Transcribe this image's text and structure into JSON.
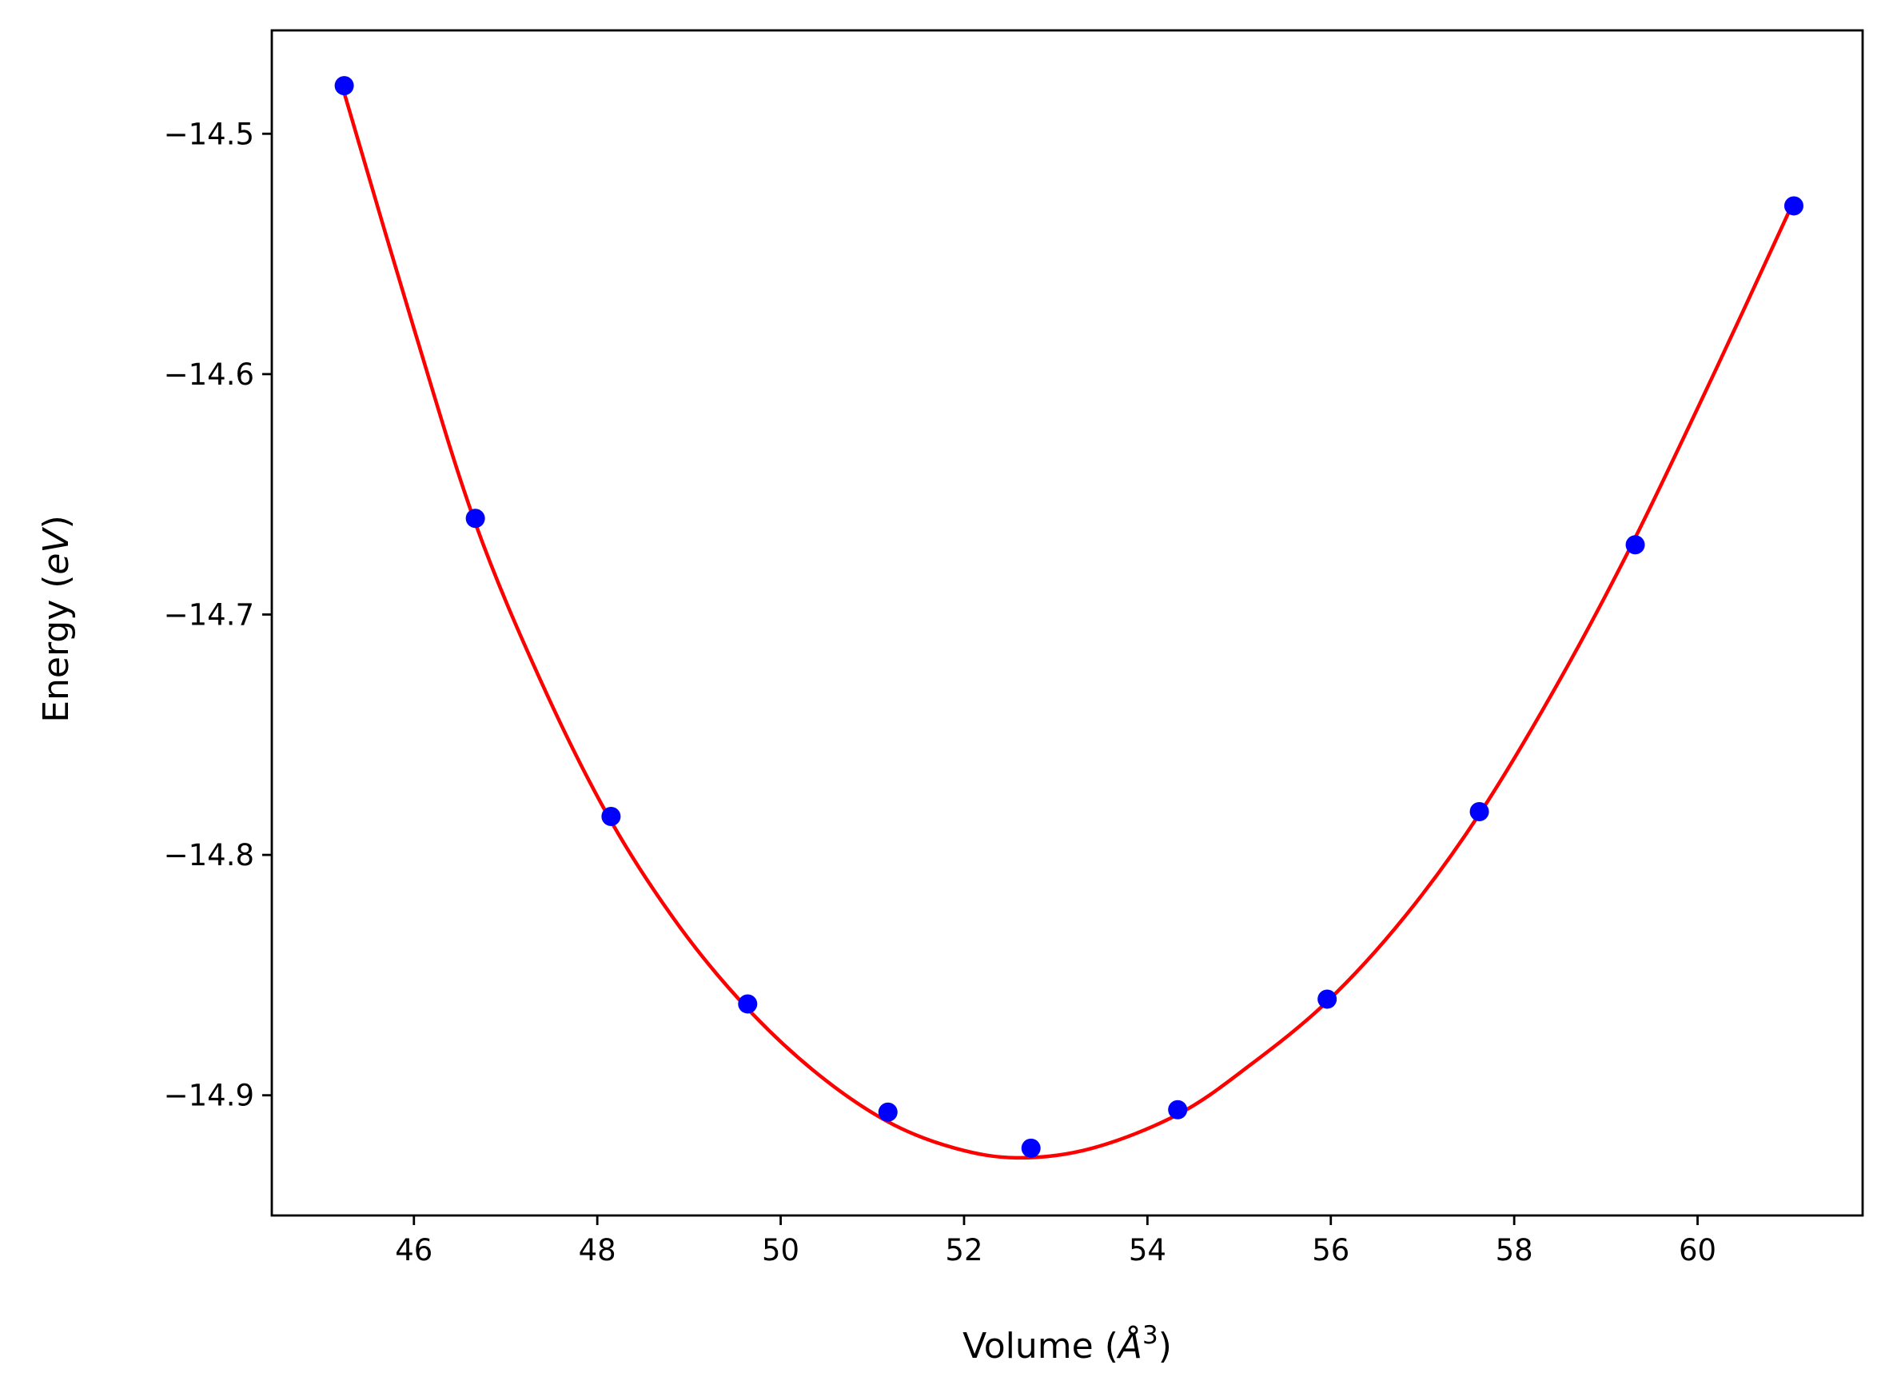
{
  "chart_data": {
    "type": "scatter",
    "title": "",
    "xlabel": "Volume ($\\AA^3$)",
    "xlabel_parts": {
      "prefix": "Volume (",
      "symbol": "Å",
      "exponent": "3",
      "suffix": ")"
    },
    "ylabel": "Energy ($eV$)",
    "ylabel_parts": {
      "prefix": "Energy (",
      "unit": "eV",
      "suffix": ")"
    },
    "xlim": [
      44.45,
      61.8
    ],
    "ylim": [
      -14.95,
      -14.457
    ],
    "xticks": [
      46,
      48,
      50,
      52,
      54,
      56,
      58,
      60
    ],
    "yticks": [
      -14.5,
      -14.6,
      -14.7,
      -14.8,
      -14.9
    ],
    "grid": false,
    "legend": "none",
    "series": [
      {
        "kind": "points",
        "color": "#0000ff",
        "x": [
          45.24,
          46.67,
          48.15,
          49.64,
          51.17,
          52.73,
          54.33,
          55.96,
          57.62,
          59.32,
          61.05
        ],
        "y": [
          -14.48,
          -14.66,
          -14.784,
          -14.862,
          -14.907,
          -14.922,
          -14.906,
          -14.86,
          -14.782,
          -14.671,
          -14.53
        ]
      },
      {
        "kind": "fit-curve",
        "color": "#ff0000",
        "x": [
          45.24,
          46.0,
          46.67,
          47.4,
          48.15,
          48.9,
          49.64,
          50.4,
          51.17,
          51.9,
          52.6,
          53.4,
          54.33,
          55.1,
          55.96,
          56.8,
          57.62,
          58.5,
          59.32,
          60.2,
          61.05
        ],
        "y": [
          -14.483,
          -14.581,
          -14.662,
          -14.729,
          -14.786,
          -14.83,
          -14.864,
          -14.891,
          -14.911,
          -14.922,
          -14.926,
          -14.922,
          -14.908,
          -14.888,
          -14.861,
          -14.826,
          -14.783,
          -14.727,
          -14.668,
          -14.598,
          -14.528
        ]
      }
    ]
  }
}
